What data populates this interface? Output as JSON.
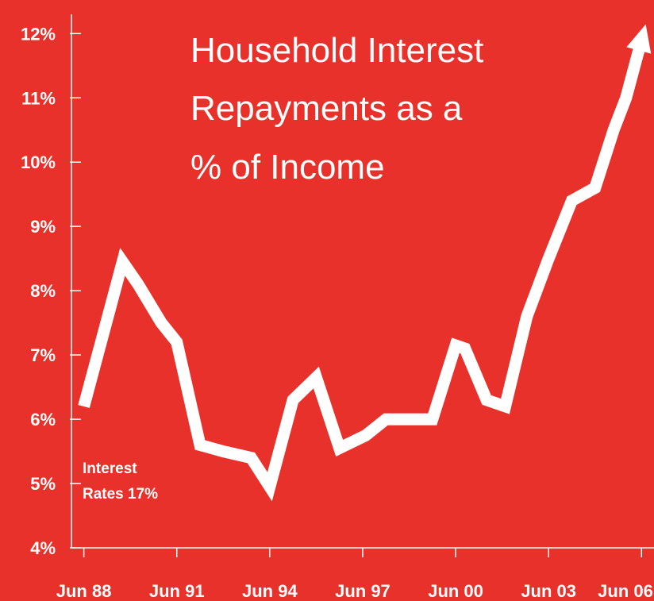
{
  "page": {
    "background": "#e8312a"
  },
  "chart_data": {
    "type": "line",
    "title": [
      "Household Interest",
      "Repayments as a",
      "% of Income"
    ],
    "xlabel": "",
    "ylabel": "",
    "y_ticks": [
      {
        "value": 4,
        "label": "4%"
      },
      {
        "value": 5,
        "label": "5%"
      },
      {
        "value": 6,
        "label": "6%"
      },
      {
        "value": 7,
        "label": "7%"
      },
      {
        "value": 8,
        "label": "8%"
      },
      {
        "value": 9,
        "label": "9%"
      },
      {
        "value": 10,
        "label": "10%"
      },
      {
        "value": 11,
        "label": "11%"
      },
      {
        "value": 12,
        "label": "12%"
      }
    ],
    "x_ticks": [
      {
        "value": 1988.5,
        "label": "Jun 88"
      },
      {
        "value": 1991.5,
        "label": "Jun 91"
      },
      {
        "value": 1994.5,
        "label": "Jun 94"
      },
      {
        "value": 1997.5,
        "label": "Jun 97"
      },
      {
        "value": 2000.5,
        "label": "Jun 00"
      },
      {
        "value": 2003.5,
        "label": "Jun 03"
      },
      {
        "value": 2006.5,
        "label": "Jun 06"
      }
    ],
    "xlim": [
      1988.1,
      2006.8
    ],
    "ylim": [
      4,
      12.3
    ],
    "series": [
      {
        "line_color": "#ffffff",
        "x": [
          1988.5,
          1989.75,
          1990.25,
          1991.0,
          1991.5,
          1992.25,
          1993.0,
          1993.9,
          1994.5,
          1995.25,
          1996.0,
          1996.75,
          1997.6,
          1998.25,
          1999.0,
          1999.75,
          2000.5,
          2000.8,
          2001.5,
          2002.1,
          2002.8,
          2003.5,
          2004.25,
          2005.0,
          2005.6,
          2006.0,
          2006.5
        ],
        "y": [
          6.2,
          8.45,
          8.1,
          7.5,
          7.2,
          5.6,
          5.5,
          5.4,
          4.95,
          6.3,
          6.65,
          5.55,
          5.75,
          6.0,
          6.0,
          6.0,
          7.15,
          7.1,
          6.3,
          6.2,
          7.6,
          8.5,
          9.4,
          9.6,
          10.5,
          11.0,
          11.9
        ]
      }
    ],
    "annotations": [
      {
        "lines": [
          "Interest",
          "Rates 17%"
        ]
      }
    ],
    "grid": false,
    "legend": "none"
  }
}
